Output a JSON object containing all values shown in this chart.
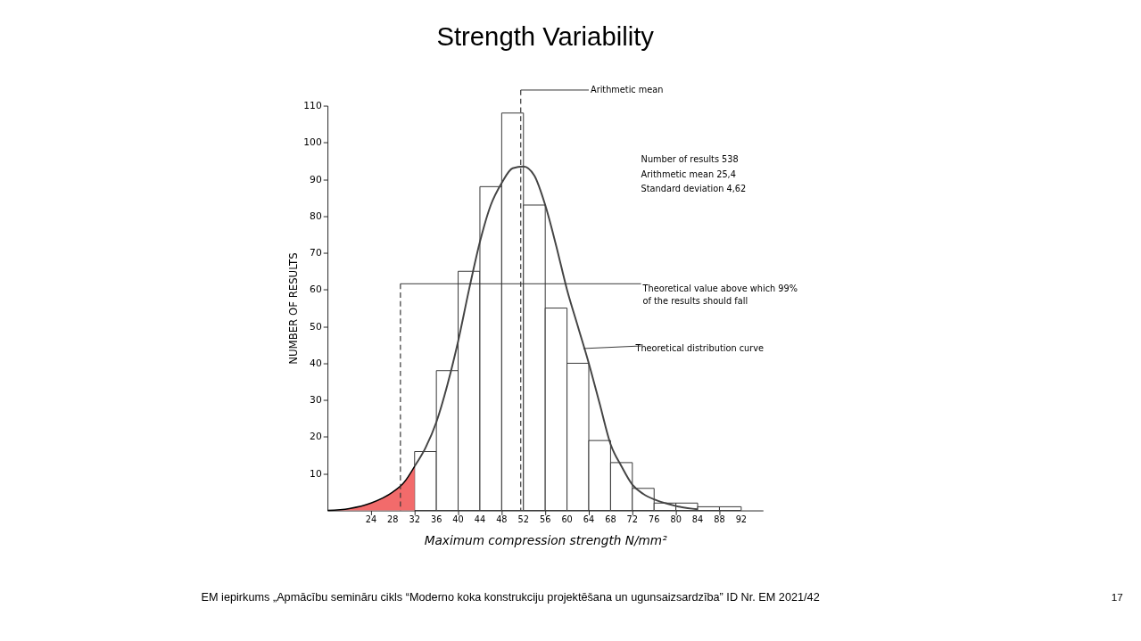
{
  "chart_data": {
    "type": "histogram",
    "title": "Strength Variability",
    "xlabel": "Maximum compression strength N/mm²",
    "ylabel": "NUMBER OF RESULTS",
    "bins": [
      32,
      36,
      40,
      44,
      48,
      52,
      56,
      60,
      64,
      68,
      72,
      76,
      80,
      84,
      88,
      92
    ],
    "values": [
      16,
      38,
      65,
      88,
      108,
      83,
      55,
      40,
      19,
      13,
      6,
      2,
      2,
      1,
      1
    ],
    "color": "#ffffff",
    "series": [
      {
        "type": "area",
        "color": "#f26b6b",
        "x": [
          16,
          20,
          24,
          28,
          30,
          32
        ],
        "values": [
          0,
          0.5,
          2,
          5,
          7.5,
          12
        ]
      },
      {
        "type": "line",
        "color": "#444444",
        "x": [
          32,
          34,
          36,
          38,
          40,
          42,
          44,
          46,
          48,
          50,
          52,
          54,
          56,
          58,
          60,
          62,
          64,
          66,
          68,
          70,
          72,
          74,
          76,
          78,
          80,
          84
        ],
        "values": [
          12,
          17,
          24,
          34,
          46,
          60,
          73,
          83,
          89,
          93,
          93.5,
          91,
          83,
          72,
          60,
          50,
          40,
          29,
          18,
          12,
          7,
          4.5,
          3,
          2,
          1.2,
          0.3
        ]
      }
    ],
    "xlim": [
      16,
      96
    ],
    "xticks": [
      24,
      28,
      32,
      36,
      40,
      44,
      48,
      52,
      56,
      60,
      64,
      68,
      72,
      76,
      80,
      84,
      88,
      92
    ],
    "ylim": [
      0,
      110
    ],
    "yticks": [
      10,
      20,
      30,
      40,
      50,
      60,
      70,
      80,
      90,
      100,
      110
    ],
    "ref_lines": [
      {
        "axis": "x",
        "value": 51.5,
        "label": "Arithmetic mean",
        "line_style": "dashed"
      },
      {
        "axis": "x",
        "value": 29.4,
        "label": "Theoretical value above which 99% of the results should fall",
        "line_style": "dashed"
      }
    ],
    "annotations": [
      "Number of results 538",
      "Arithmetic mean 25,4",
      "Standard deviation 4,62",
      {
        "text": "Theoretical distribution curve",
        "x": 63,
        "y": 44
      },
      "EM iepirkums „Apmācību semināru cikls “Moderno koka konstrukciju projektēšana un ugunsaizsardzība” ID Nr. EM 2021/42",
      "17"
    ],
    "tick_labels": true
  }
}
